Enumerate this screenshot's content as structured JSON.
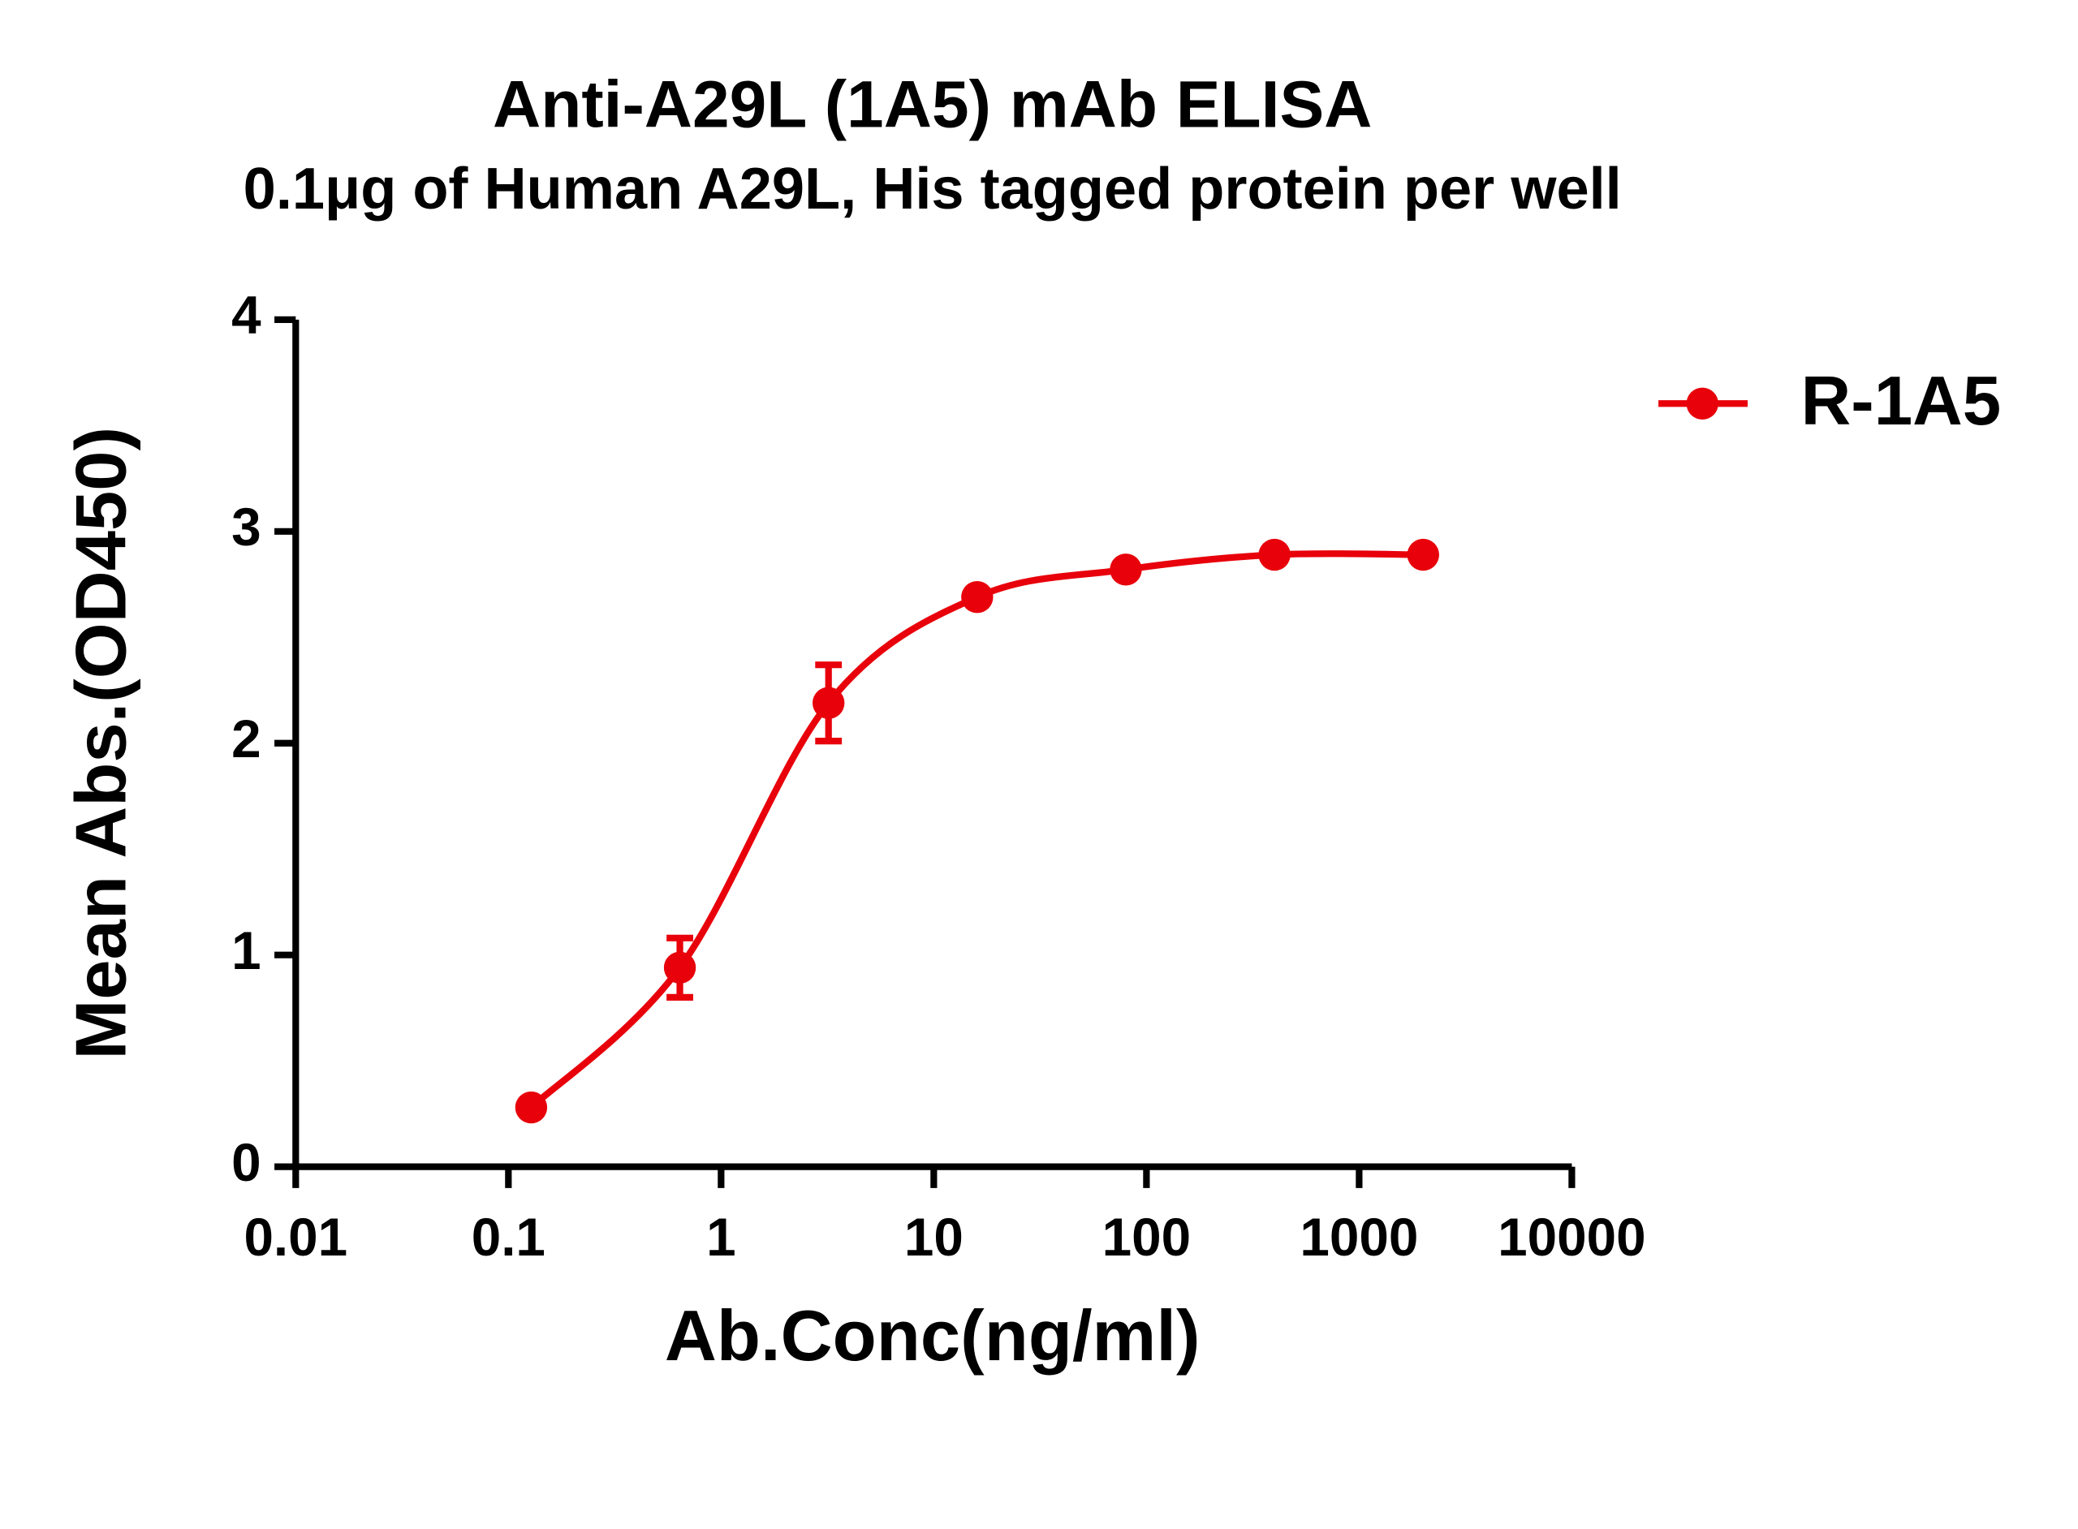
{
  "chart_data": {
    "type": "line",
    "title": "Anti-A29L (1A5) mAb ELISA",
    "subtitle": "0.1μg of Human A29L, His tagged protein per well",
    "x_label": "Ab.Conc(ng/ml)",
    "y_label": "Mean Abs.(OD450)",
    "x": [
      0.128,
      0.64,
      3.2,
      16,
      80,
      400,
      2000
    ],
    "series": [
      {
        "name": "R-1A5",
        "color": "#e8000b",
        "values": [
          0.28,
          0.94,
          2.19,
          2.69,
          2.82,
          2.89,
          2.89
        ],
        "errors": [
          0,
          0.14,
          0.18,
          0,
          0,
          0,
          0
        ]
      }
    ],
    "xscale": "log",
    "xlim": [
      0.01,
      10000
    ],
    "xticks": [
      0.01,
      0.1,
      1,
      10,
      100,
      1000,
      10000
    ],
    "ylim": [
      0,
      4
    ],
    "yticks": [
      0,
      1,
      2,
      3,
      4
    ],
    "legend": "right"
  }
}
